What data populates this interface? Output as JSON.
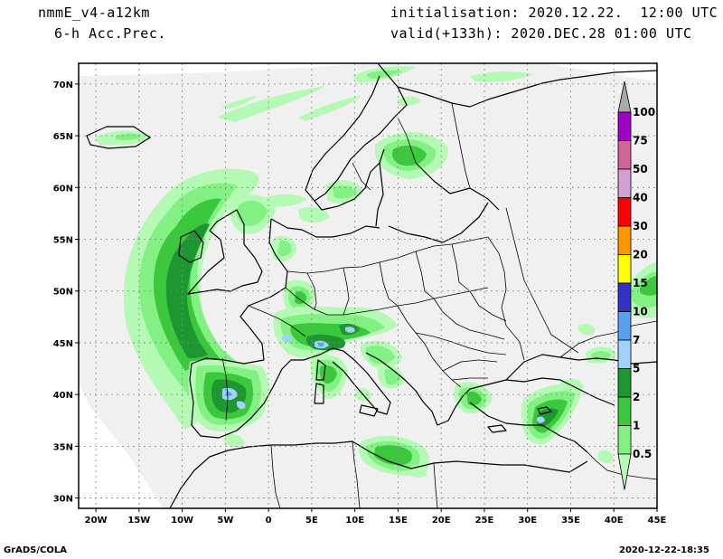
{
  "header": {
    "model": "nmmE_v4-a12km",
    "field": "6-h Acc.Prec.",
    "init": "initialisation: 2020.12.22.  12:00 UTC",
    "valid": "valid(+133h): 2020.DEC.28 01:00 UTC"
  },
  "footer": {
    "left": "GrADS/COLA",
    "right": "2020-12-22-18:35"
  },
  "map": {
    "lat_labels": [
      "70N",
      "65N",
      "60N",
      "55N",
      "50N",
      "45N",
      "40N",
      "35N",
      "30N"
    ],
    "lon_labels": [
      "20W",
      "15W",
      "10W",
      "5W",
      "0",
      "5E",
      "10E",
      "15E",
      "20E",
      "25E",
      "30E",
      "35E",
      "40E",
      "45E"
    ],
    "lon_range": [
      -22,
      45
    ],
    "lat_range": [
      29,
      72
    ],
    "grid": true
  },
  "legend": {
    "labels": [
      "100",
      "75",
      "50",
      "40",
      "30",
      "20",
      "15",
      "10",
      "7",
      "5",
      "2",
      "1",
      "0.5"
    ],
    "colors": [
      "#a000c8",
      "#d26496",
      "#d2a0d2",
      "#ff0000",
      "#ff9600",
      "#ffff00",
      "#3232c8",
      "#5aa0f0",
      "#a0d2fa",
      "#1e9632",
      "#3cc83c",
      "#82f082",
      "#b4fab4"
    ],
    "top_color": "#aaaaaa"
  },
  "colors": {
    "domain_fill": "#f0f0f0",
    "light_green": "#b4fab4",
    "mid_green": "#82f082",
    "green": "#3cc83c",
    "dark_green": "#1e9632",
    "light_blue": "#a0d2fa",
    "blue": "#5aa0f0"
  }
}
